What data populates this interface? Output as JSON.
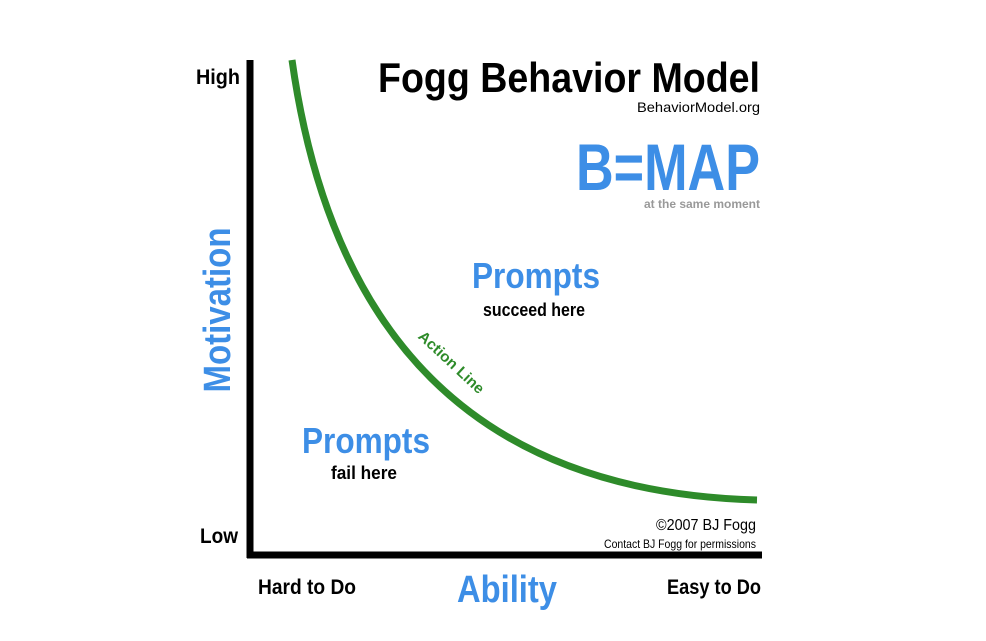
{
  "header": {
    "title": "Fogg Behavior Model",
    "website": "BehaviorModel.org"
  },
  "formula": {
    "text": "B=MAP",
    "note": "at the same moment"
  },
  "axes": {
    "y_label": "Motivation",
    "y_high": "High",
    "y_low": "Low",
    "x_label": "Ability",
    "x_low": "Hard to Do",
    "x_high": "Easy to Do"
  },
  "curve": {
    "label": "Action Line"
  },
  "regions": [
    {
      "title": "Prompts",
      "subtitle": "succeed here"
    },
    {
      "title": "Prompts",
      "subtitle": "fail here"
    }
  ],
  "footer": {
    "copyright": "©2007 BJ Fogg",
    "permissions": "Contact BJ Fogg for permissions"
  }
}
